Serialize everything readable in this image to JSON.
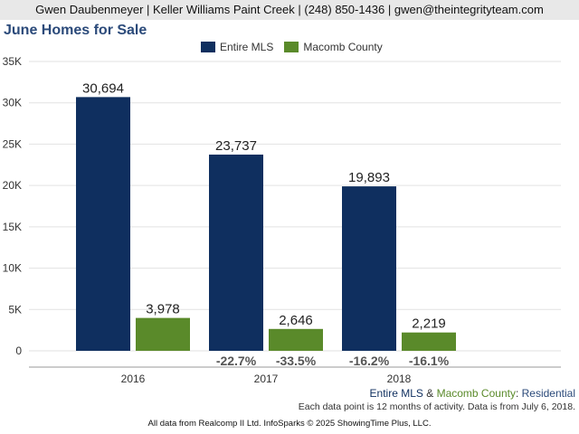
{
  "header": {
    "text": "Gwen Daubenmeyer | Keller Williams Paint Creek | (248) 850-1436 | gwen@theintegrityteam.com"
  },
  "footer": {
    "series_a": "Entire MLS",
    "amp": " & ",
    "series_b": "Macomb County",
    "colon": ": ",
    "property_type": "Residential",
    "note": "Each data point is 12 months of activity. Data is from July 6, 2018.",
    "credit": "All data from Realcomp II Ltd. InfoSparks © 2025 ShowingTime Plus, LLC."
  },
  "colors": {
    "entire_mls": "#0f2f5f",
    "macomb_county": "#5a8a2a",
    "axis_text": "#333333",
    "change_text": "#555555",
    "title": "#2b4a7a"
  },
  "chart_data": {
    "type": "bar",
    "title": "June Homes for Sale",
    "xlabel": "",
    "ylabel": "",
    "categories": [
      "2016",
      "2017",
      "2018"
    ],
    "ylim": [
      0,
      35000
    ],
    "yticks": [
      0,
      5000,
      10000,
      15000,
      20000,
      25000,
      30000,
      35000
    ],
    "ytick_labels": [
      "0",
      "5K",
      "10K",
      "15K",
      "20K",
      "25K",
      "30K",
      "35K"
    ],
    "grid": true,
    "legend_position": "top-center",
    "series": [
      {
        "name": "Entire MLS",
        "values": [
          30694,
          23737,
          19893
        ],
        "value_labels": [
          "30,694",
          "23,737",
          "19,893"
        ],
        "change_labels": [
          "",
          "-22.7%",
          "-16.2%"
        ]
      },
      {
        "name": "Macomb County",
        "values": [
          3978,
          2646,
          2219
        ],
        "value_labels": [
          "3,978",
          "2,646",
          "2,219"
        ],
        "change_labels": [
          "",
          "-33.5%",
          "-16.1%"
        ]
      }
    ]
  }
}
